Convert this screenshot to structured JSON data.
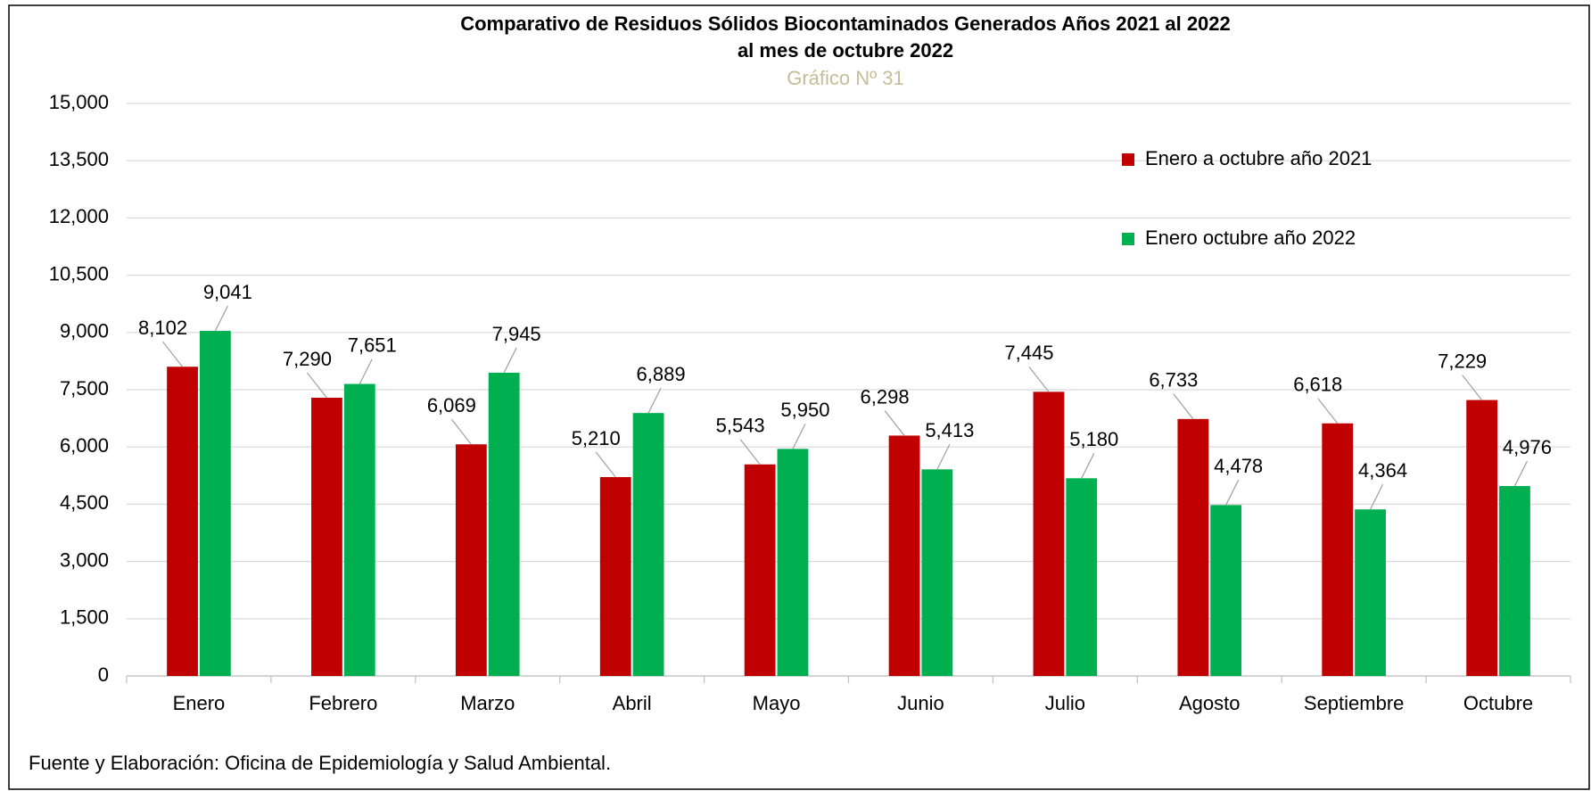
{
  "chart_data": {
    "type": "bar",
    "title": "Comparativo de Residuos Sólidos Biocontaminados Generados Años 2021 al 2022",
    "title_line2": "al mes de octubre 2022",
    "subtitle": "Gráfico Nº 31",
    "source": "Fuente y Elaboración: Oficina de Epidemiología y Salud Ambiental.",
    "categories": [
      "Enero",
      "Febrero",
      "Marzo",
      "Abril",
      "Mayo",
      "Junio",
      "Julio",
      "Agosto",
      "Septiembre",
      "Octubre"
    ],
    "series": [
      {
        "name": "Enero a octubre año 2021",
        "color": "#c00000",
        "values": [
          8102,
          7290,
          6069,
          5210,
          5543,
          6298,
          7445,
          6733,
          6618,
          7229
        ],
        "value_labels": [
          "8,102",
          "7,290",
          "6,069",
          "5,210",
          "5,543",
          "6,298",
          "7,445",
          "6,733",
          "6,618",
          "7,229"
        ]
      },
      {
        "name": "Enero octubre año 2022",
        "color": "#00b050",
        "values": [
          9041,
          7651,
          7945,
          6889,
          5950,
          5413,
          5180,
          4478,
          4364,
          4976
        ],
        "value_labels": [
          "9,041",
          "7,651",
          "7,945",
          "6,889",
          "5,950",
          "5,413",
          "5,180",
          "4,478",
          "4,364",
          "4,976"
        ]
      }
    ],
    "ylim": [
      0,
      15000
    ],
    "yticks": [
      0,
      {
        "value": 1500,
        "label": "1,500"
      },
      {
        "value": 3000,
        "label": "3,000"
      },
      {
        "value": 4500,
        "label": "4,500"
      },
      {
        "value": 6000,
        "label": "6,000"
      },
      {
        "value": 7500,
        "label": "7,500"
      },
      {
        "value": 9000,
        "label": "9,000"
      },
      {
        "value": 10500,
        "label": "10,500"
      },
      {
        "value": 12000,
        "label": "12,000"
      },
      {
        "value": 13500,
        "label": "13,500"
      },
      {
        "value": 15000,
        "label": "15,000"
      }
    ],
    "grid": true,
    "legend": "top-right"
  }
}
